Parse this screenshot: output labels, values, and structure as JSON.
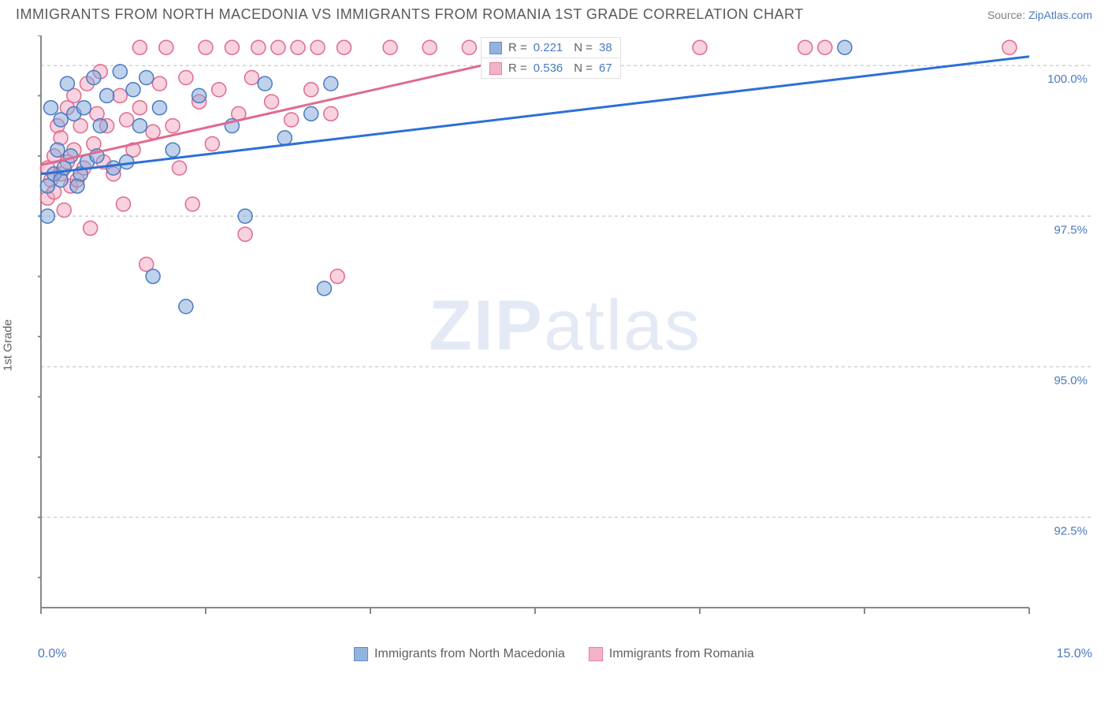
{
  "header": {
    "title": "IMMIGRANTS FROM NORTH MACEDONIA VS IMMIGRANTS FROM ROMANIA 1ST GRADE CORRELATION CHART",
    "source_prefix": "Source: ",
    "source_link": "ZipAtlas.com"
  },
  "chart": {
    "ylabel": "1st Grade",
    "xlim": [
      0.0,
      15.0
    ],
    "ylim": [
      91.0,
      100.5
    ],
    "x_axis": {
      "start_label": "0.0%",
      "end_label": "15.0%",
      "tick_positions": [
        0,
        2.5,
        5.0,
        7.5,
        10.0,
        12.5,
        15.0
      ]
    },
    "y_axis": {
      "gridlines": [
        92.5,
        95.0,
        97.5,
        100.0
      ],
      "labels": [
        "92.5%",
        "95.0%",
        "97.5%",
        "100.0%"
      ],
      "tick_positions": [
        91.5,
        92.5,
        93.5,
        94.5,
        95.5,
        96.5,
        97.5,
        98.5,
        99.5,
        100.5
      ]
    },
    "background_color": "#ffffff",
    "grid_color": "#d0d0d0",
    "axis_color": "#888888",
    "series_a": {
      "name": "Immigrants from North Macedonia",
      "color_fill": "#7ea6d9",
      "color_stroke": "#4a7ac0",
      "fill_opacity": 0.5,
      "marker_radius": 9,
      "R": "0.221",
      "N": "38",
      "trendline": {
        "x1": 0.0,
        "y1": 98.2,
        "x2": 15.0,
        "y2": 100.15,
        "color": "#2d6fd6",
        "width": 3
      },
      "points": [
        [
          0.1,
          98.0
        ],
        [
          0.1,
          97.5
        ],
        [
          0.15,
          99.3
        ],
        [
          0.2,
          98.2
        ],
        [
          0.25,
          98.6
        ],
        [
          0.3,
          99.1
        ],
        [
          0.3,
          98.1
        ],
        [
          0.35,
          98.3
        ],
        [
          0.4,
          99.7
        ],
        [
          0.45,
          98.5
        ],
        [
          0.5,
          99.2
        ],
        [
          0.55,
          98.0
        ],
        [
          0.6,
          98.2
        ],
        [
          0.65,
          99.3
        ],
        [
          0.7,
          98.4
        ],
        [
          0.8,
          99.8
        ],
        [
          0.85,
          98.5
        ],
        [
          0.9,
          99.0
        ],
        [
          1.0,
          99.5
        ],
        [
          1.1,
          98.3
        ],
        [
          1.2,
          99.9
        ],
        [
          1.3,
          98.4
        ],
        [
          1.4,
          99.6
        ],
        [
          1.5,
          99.0
        ],
        [
          1.6,
          99.8
        ],
        [
          1.7,
          96.5
        ],
        [
          1.8,
          99.3
        ],
        [
          2.0,
          98.6
        ],
        [
          2.2,
          96.0
        ],
        [
          2.4,
          99.5
        ],
        [
          2.9,
          99.0
        ],
        [
          3.1,
          97.5
        ],
        [
          3.4,
          99.7
        ],
        [
          3.7,
          98.8
        ],
        [
          4.1,
          99.2
        ],
        [
          4.3,
          96.3
        ],
        [
          4.4,
          99.7
        ],
        [
          12.2,
          100.3
        ]
      ]
    },
    "series_b": {
      "name": "Immigrants from Romania",
      "color_fill": "#f2a6bd",
      "color_stroke": "#e06a8c",
      "fill_opacity": 0.5,
      "marker_radius": 9,
      "R": "0.536",
      "N": "67",
      "trendline": {
        "x1": 0.0,
        "y1": 98.35,
        "x2": 8.3,
        "y2": 100.4,
        "color": "#e06a8c",
        "width": 3
      },
      "points": [
        [
          0.1,
          97.8
        ],
        [
          0.1,
          98.3
        ],
        [
          0.15,
          98.1
        ],
        [
          0.2,
          97.9
        ],
        [
          0.2,
          98.5
        ],
        [
          0.25,
          99.0
        ],
        [
          0.3,
          98.2
        ],
        [
          0.3,
          98.8
        ],
        [
          0.35,
          97.6
        ],
        [
          0.4,
          98.4
        ],
        [
          0.4,
          99.3
        ],
        [
          0.45,
          98.0
        ],
        [
          0.5,
          98.6
        ],
        [
          0.5,
          99.5
        ],
        [
          0.55,
          98.1
        ],
        [
          0.6,
          99.0
        ],
        [
          0.65,
          98.3
        ],
        [
          0.7,
          99.7
        ],
        [
          0.75,
          97.3
        ],
        [
          0.8,
          98.7
        ],
        [
          0.85,
          99.2
        ],
        [
          0.9,
          99.9
        ],
        [
          0.95,
          98.4
        ],
        [
          1.0,
          99.0
        ],
        [
          1.1,
          98.2
        ],
        [
          1.2,
          99.5
        ],
        [
          1.25,
          97.7
        ],
        [
          1.3,
          99.1
        ],
        [
          1.4,
          98.6
        ],
        [
          1.5,
          100.3
        ],
        [
          1.5,
          99.3
        ],
        [
          1.6,
          96.7
        ],
        [
          1.7,
          98.9
        ],
        [
          1.8,
          99.7
        ],
        [
          1.9,
          100.3
        ],
        [
          2.0,
          99.0
        ],
        [
          2.1,
          98.3
        ],
        [
          2.2,
          99.8
        ],
        [
          2.3,
          97.7
        ],
        [
          2.4,
          99.4
        ],
        [
          2.5,
          100.3
        ],
        [
          2.6,
          98.7
        ],
        [
          2.7,
          99.6
        ],
        [
          2.9,
          100.3
        ],
        [
          3.0,
          99.2
        ],
        [
          3.1,
          97.2
        ],
        [
          3.2,
          99.8
        ],
        [
          3.3,
          100.3
        ],
        [
          3.5,
          99.4
        ],
        [
          3.6,
          100.3
        ],
        [
          3.8,
          99.1
        ],
        [
          3.9,
          100.3
        ],
        [
          4.1,
          99.6
        ],
        [
          4.2,
          100.3
        ],
        [
          4.4,
          99.2
        ],
        [
          4.5,
          96.5
        ],
        [
          4.6,
          100.3
        ],
        [
          5.3,
          100.3
        ],
        [
          5.9,
          100.3
        ],
        [
          6.5,
          100.3
        ],
        [
          7.4,
          100.3
        ],
        [
          8.0,
          100.3
        ],
        [
          8.3,
          100.3
        ],
        [
          10.0,
          100.3
        ],
        [
          11.6,
          100.3
        ],
        [
          11.9,
          100.3
        ],
        [
          14.7,
          100.3
        ]
      ]
    },
    "stats_box": {
      "row_labels": {
        "R": "R  =",
        "N": "N  ="
      }
    },
    "legend": {
      "a_label": "Immigrants from North Macedonia",
      "b_label": "Immigrants from Romania"
    },
    "watermark": {
      "part1": "ZIP",
      "part2": "atlas"
    }
  }
}
